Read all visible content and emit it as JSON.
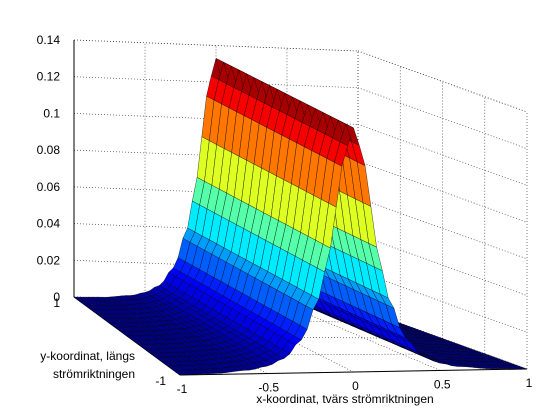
{
  "chart_data": {
    "type": "surface",
    "title": "",
    "xlabel": "x-koordinat, tvärs strömriktningen",
    "ylabel_lines": [
      "y-koordinat, längs",
      "strömriktningen"
    ],
    "zlabel": "",
    "xlim": [
      -1,
      1
    ],
    "ylim": [
      -1,
      1
    ],
    "zlim": [
      0,
      0.14
    ],
    "xticks": [
      -1,
      -0.5,
      0,
      0.5,
      1
    ],
    "xtick_labels": [
      "-1",
      "-0.5",
      "0",
      "0.5",
      "1"
    ],
    "yticks": [
      -1,
      1
    ],
    "ytick_labels": [
      "-1",
      "1"
    ],
    "zticks": [
      0,
      0.02,
      0.04,
      0.06,
      0.08,
      0.1,
      0.12,
      0.14
    ],
    "ztick_labels": [
      "0",
      "0.02",
      "0.04",
      "0.06",
      "0.08",
      "0.1",
      "0.12",
      "0.14"
    ],
    "grid": true,
    "colormap": "jet",
    "surface_profile": {
      "description_units": "z as a function of x; constant along y",
      "x": [
        -1.0,
        -0.8,
        -0.6,
        -0.5,
        -0.4,
        -0.3,
        -0.2,
        -0.15,
        -0.1,
        -0.05,
        0.0,
        0.05,
        0.1,
        0.15,
        0.2,
        0.3,
        0.4,
        0.5,
        0.6,
        0.8,
        1.0
      ],
      "z": [
        0.0,
        0.0005,
        0.002,
        0.004,
        0.008,
        0.018,
        0.04,
        0.06,
        0.09,
        0.12,
        0.133,
        0.12,
        0.09,
        0.06,
        0.04,
        0.018,
        0.008,
        0.004,
        0.002,
        0.0005,
        0.0
      ]
    }
  }
}
